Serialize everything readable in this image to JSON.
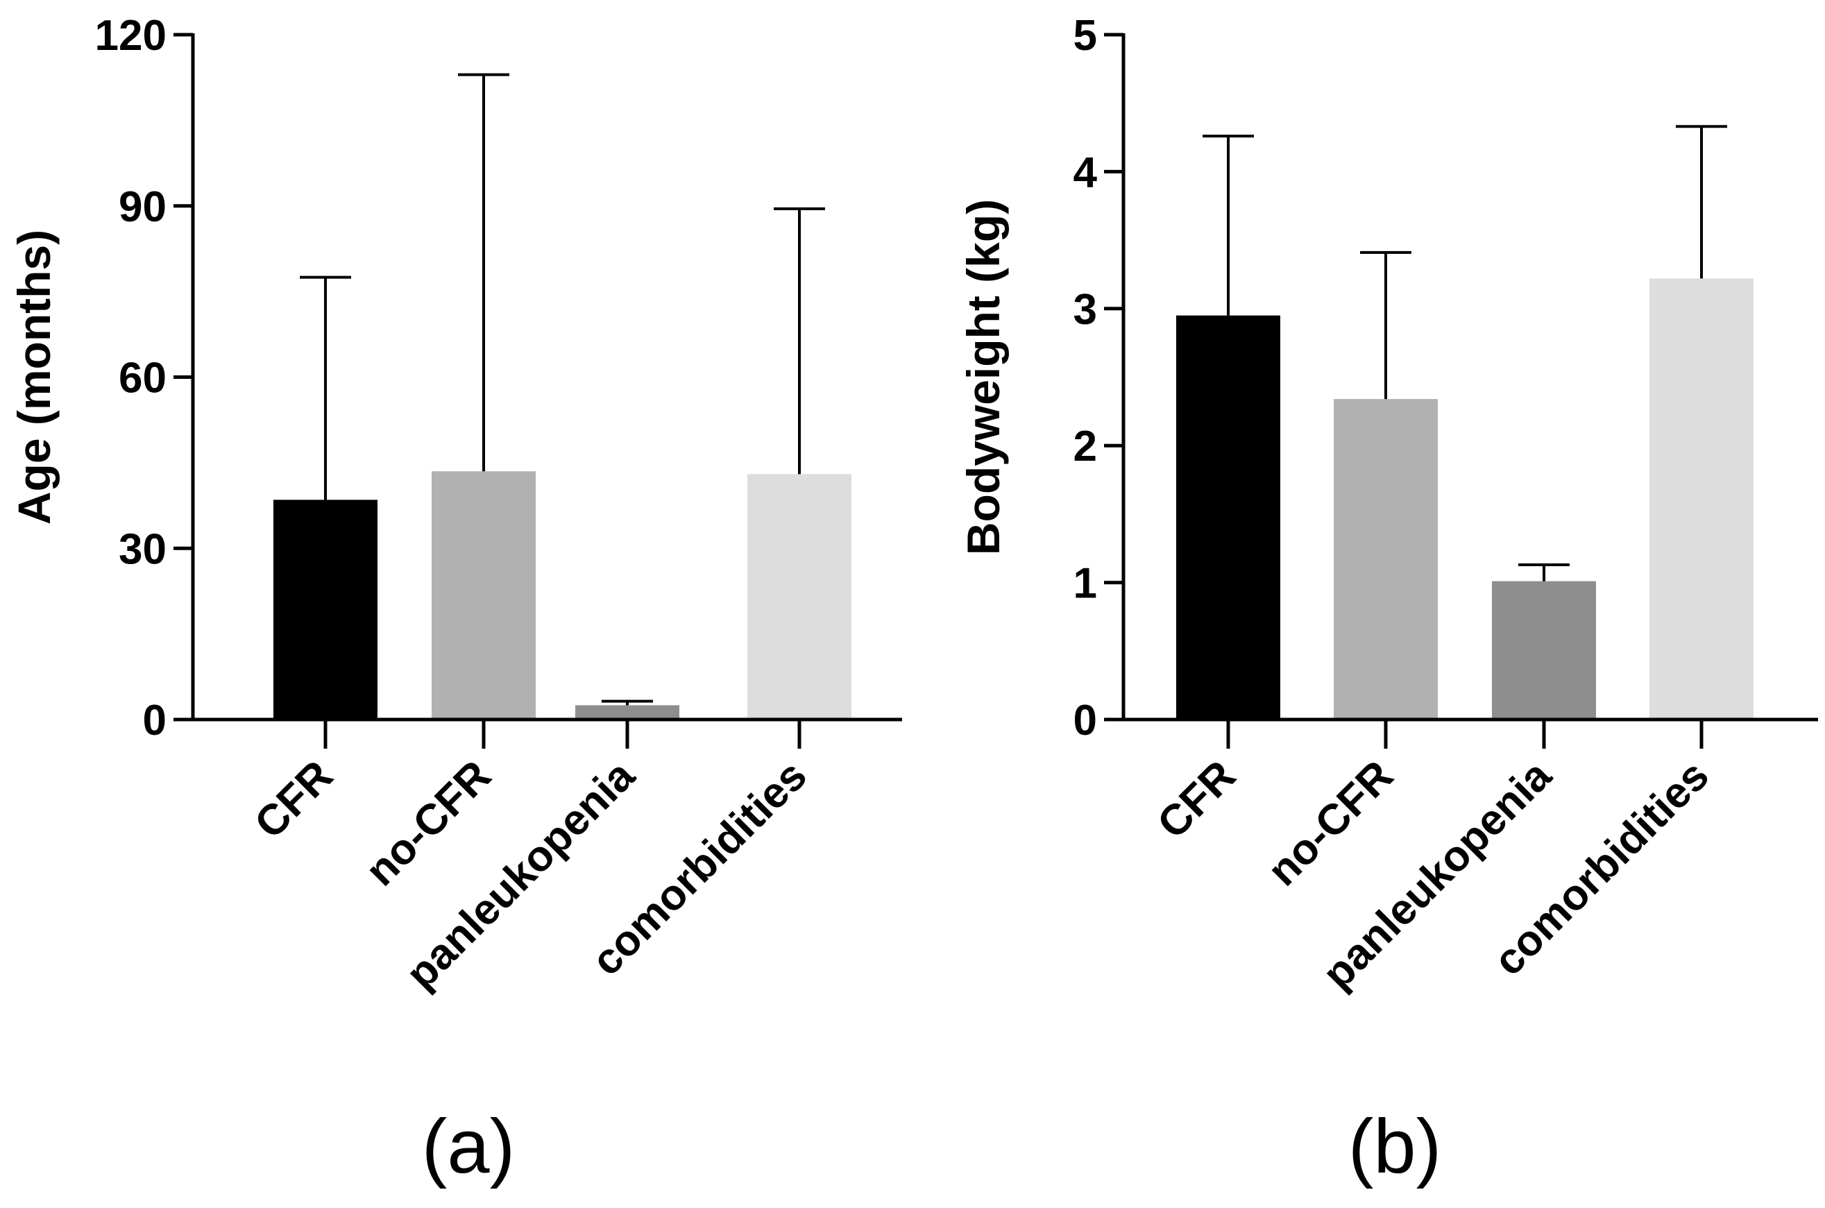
{
  "chart_data": [
    {
      "type": "bar",
      "panel_label": "(a)",
      "title": "",
      "xlabel": "",
      "ylabel": "Age (months)",
      "ylim": [
        0,
        120
      ],
      "yticks": [
        0,
        30,
        60,
        90,
        120
      ],
      "categories": [
        "CFR",
        "no-CFR",
        "panleukopenia",
        "comorbidities"
      ],
      "values": [
        38.5,
        43.5,
        2.5,
        43
      ],
      "error_upper": [
        77.5,
        113,
        3.2,
        89.5
      ],
      "colors": [
        "#000000",
        "#b1b1b1",
        "#8e8e8e",
        "#dddddd"
      ],
      "grid": false,
      "legend": "none"
    },
    {
      "type": "bar",
      "panel_label": "(b)",
      "title": "",
      "xlabel": "",
      "ylabel": "Bodyweight (kg)",
      "ylim": [
        0,
        5
      ],
      "yticks": [
        0,
        1,
        2,
        3,
        4,
        5
      ],
      "categories": [
        "CFR",
        "no-CFR",
        "panleukopenia",
        "comorbidities"
      ],
      "values": [
        2.95,
        2.34,
        1.01,
        3.22
      ],
      "error_upper": [
        4.26,
        3.41,
        1.13,
        4.33
      ],
      "colors": [
        "#000000",
        "#b1b1b1",
        "#8e8e8e",
        "#dddddd"
      ],
      "grid": false,
      "legend": "none"
    }
  ]
}
